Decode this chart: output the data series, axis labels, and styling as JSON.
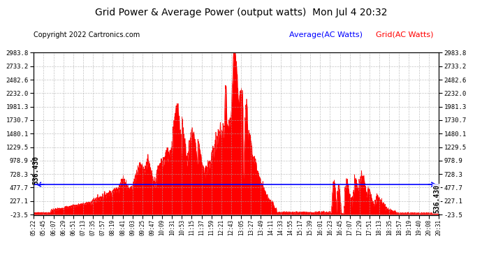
{
  "title": "Grid Power & Average Power (output watts)  Mon Jul 4 20:32",
  "copyright": "Copyright 2022 Cartronics.com",
  "legend_average": "Average(AC Watts)",
  "legend_grid": "Grid(AC Watts)",
  "left_label": "536.430",
  "right_label": "536.430",
  "average_value": 536.43,
  "ymin": -23.5,
  "ymax": 2983.8,
  "yticks": [
    2983.8,
    2733.2,
    2482.6,
    2232.0,
    1981.3,
    1730.7,
    1480.1,
    1229.5,
    978.9,
    728.3,
    477.7,
    227.1,
    -23.5
  ],
  "background_color": "#ffffff",
  "plot_bg_color": "#ffffff",
  "grid_color": "#aaaaaa",
  "fill_color": "#ff0000",
  "average_line_color": "#0000ff",
  "x_tick_labels": [
    "05:22",
    "05:45",
    "06:07",
    "06:29",
    "06:51",
    "07:13",
    "07:35",
    "07:57",
    "08:19",
    "08:41",
    "09:03",
    "09:25",
    "09:47",
    "10:09",
    "10:31",
    "10:53",
    "11:15",
    "11:37",
    "11:59",
    "12:21",
    "12:43",
    "13:05",
    "13:27",
    "13:49",
    "14:11",
    "14:33",
    "14:55",
    "15:17",
    "15:39",
    "16:01",
    "16:23",
    "16:45",
    "17:07",
    "17:29",
    "17:51",
    "18:13",
    "18:35",
    "18:57",
    "19:19",
    "19:40",
    "20:08",
    "20:31"
  ]
}
